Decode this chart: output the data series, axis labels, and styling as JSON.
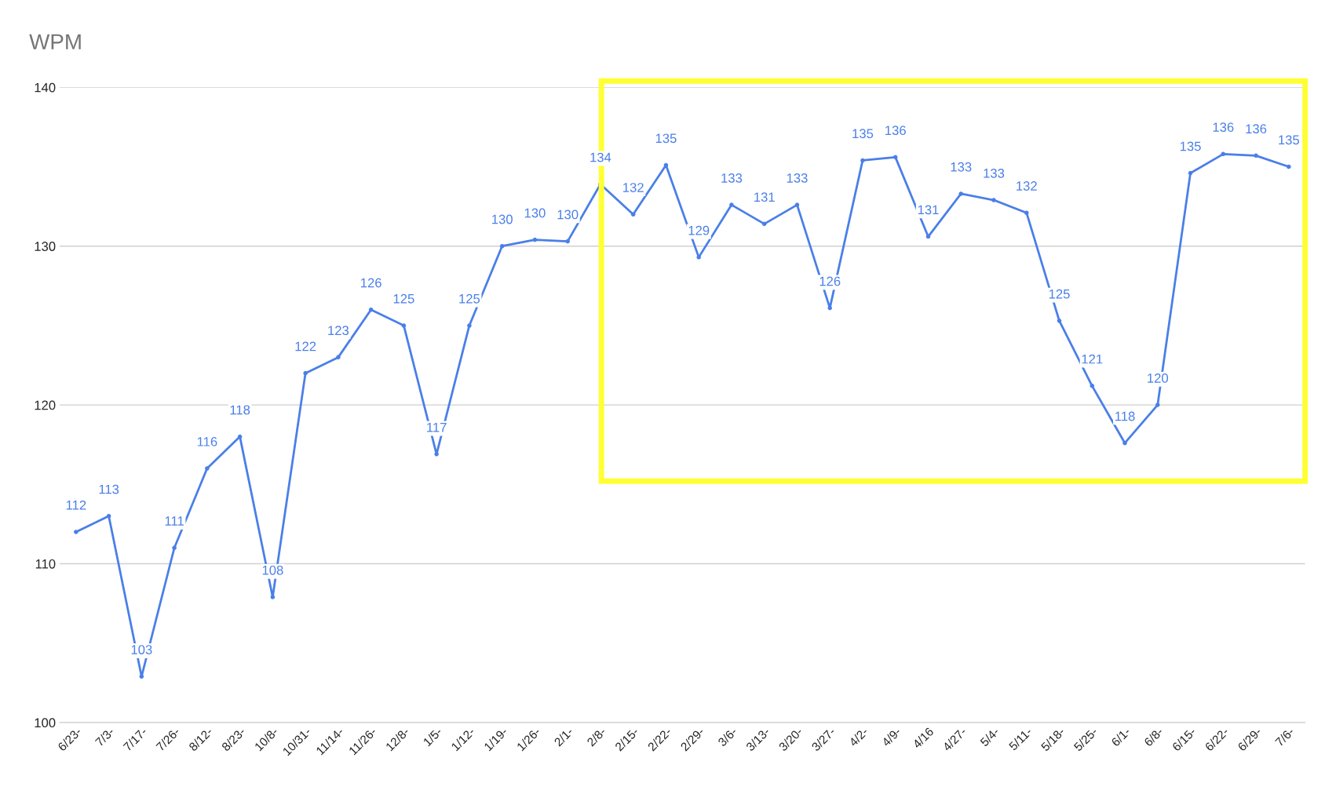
{
  "chart_data": {
    "type": "line",
    "title": "WPM",
    "categories": [
      "6/23-",
      "7/3-",
      "7/17-",
      "7/26-",
      "8/12-",
      "8/23-",
      "10/8-",
      "10/31-",
      "11/14-",
      "11/26-",
      "12/8-",
      "1/5-",
      "1/12-",
      "1/19-",
      "1/26-",
      "2/1-",
      "2/8-",
      "2/15-",
      "2/22-",
      "2/29-",
      "3/6-",
      "3/13-",
      "3/20-",
      "3/27-",
      "4/2-",
      "4/9-",
      "4/16",
      "4/27-",
      "5/4-",
      "5/11-",
      "5/18-",
      "5/25-",
      "6/1-",
      "6/8-",
      "6/15-",
      "6/22-",
      "6/29-",
      "7/6-"
    ],
    "series": [
      {
        "color": "#4a7fe8",
        "values": [
          112,
          113,
          102.9,
          111,
          116,
          118,
          107.9,
          122,
          123,
          126,
          125,
          116.9,
          125,
          130,
          130.4,
          130.3,
          133.9,
          132,
          135.1,
          129.3,
          132.6,
          131.4,
          132.6,
          126.1,
          135.4,
          135.6,
          130.6,
          133.3,
          132.9,
          132.1,
          125.3,
          121.2,
          117.6,
          120,
          134.6,
          135.8,
          135.7,
          135
        ],
        "value_labels": [
          "112",
          "113",
          "103",
          "111",
          "116",
          "118",
          "108",
          "122",
          "123",
          "126",
          "125",
          "117",
          "125",
          "130",
          "130",
          "130",
          "134",
          "132",
          "135",
          "129",
          "133",
          "131",
          "133",
          "126",
          "135",
          "136",
          "131",
          "133",
          "133",
          "132",
          "125",
          "121",
          "118",
          "120",
          "135",
          "136",
          "136",
          "135"
        ]
      }
    ],
    "ylim": [
      100,
      140
    ],
    "yticks": [
      100,
      110,
      120,
      130,
      140
    ],
    "grid": "y",
    "marker": "circle",
    "line_style": "solid"
  }
}
